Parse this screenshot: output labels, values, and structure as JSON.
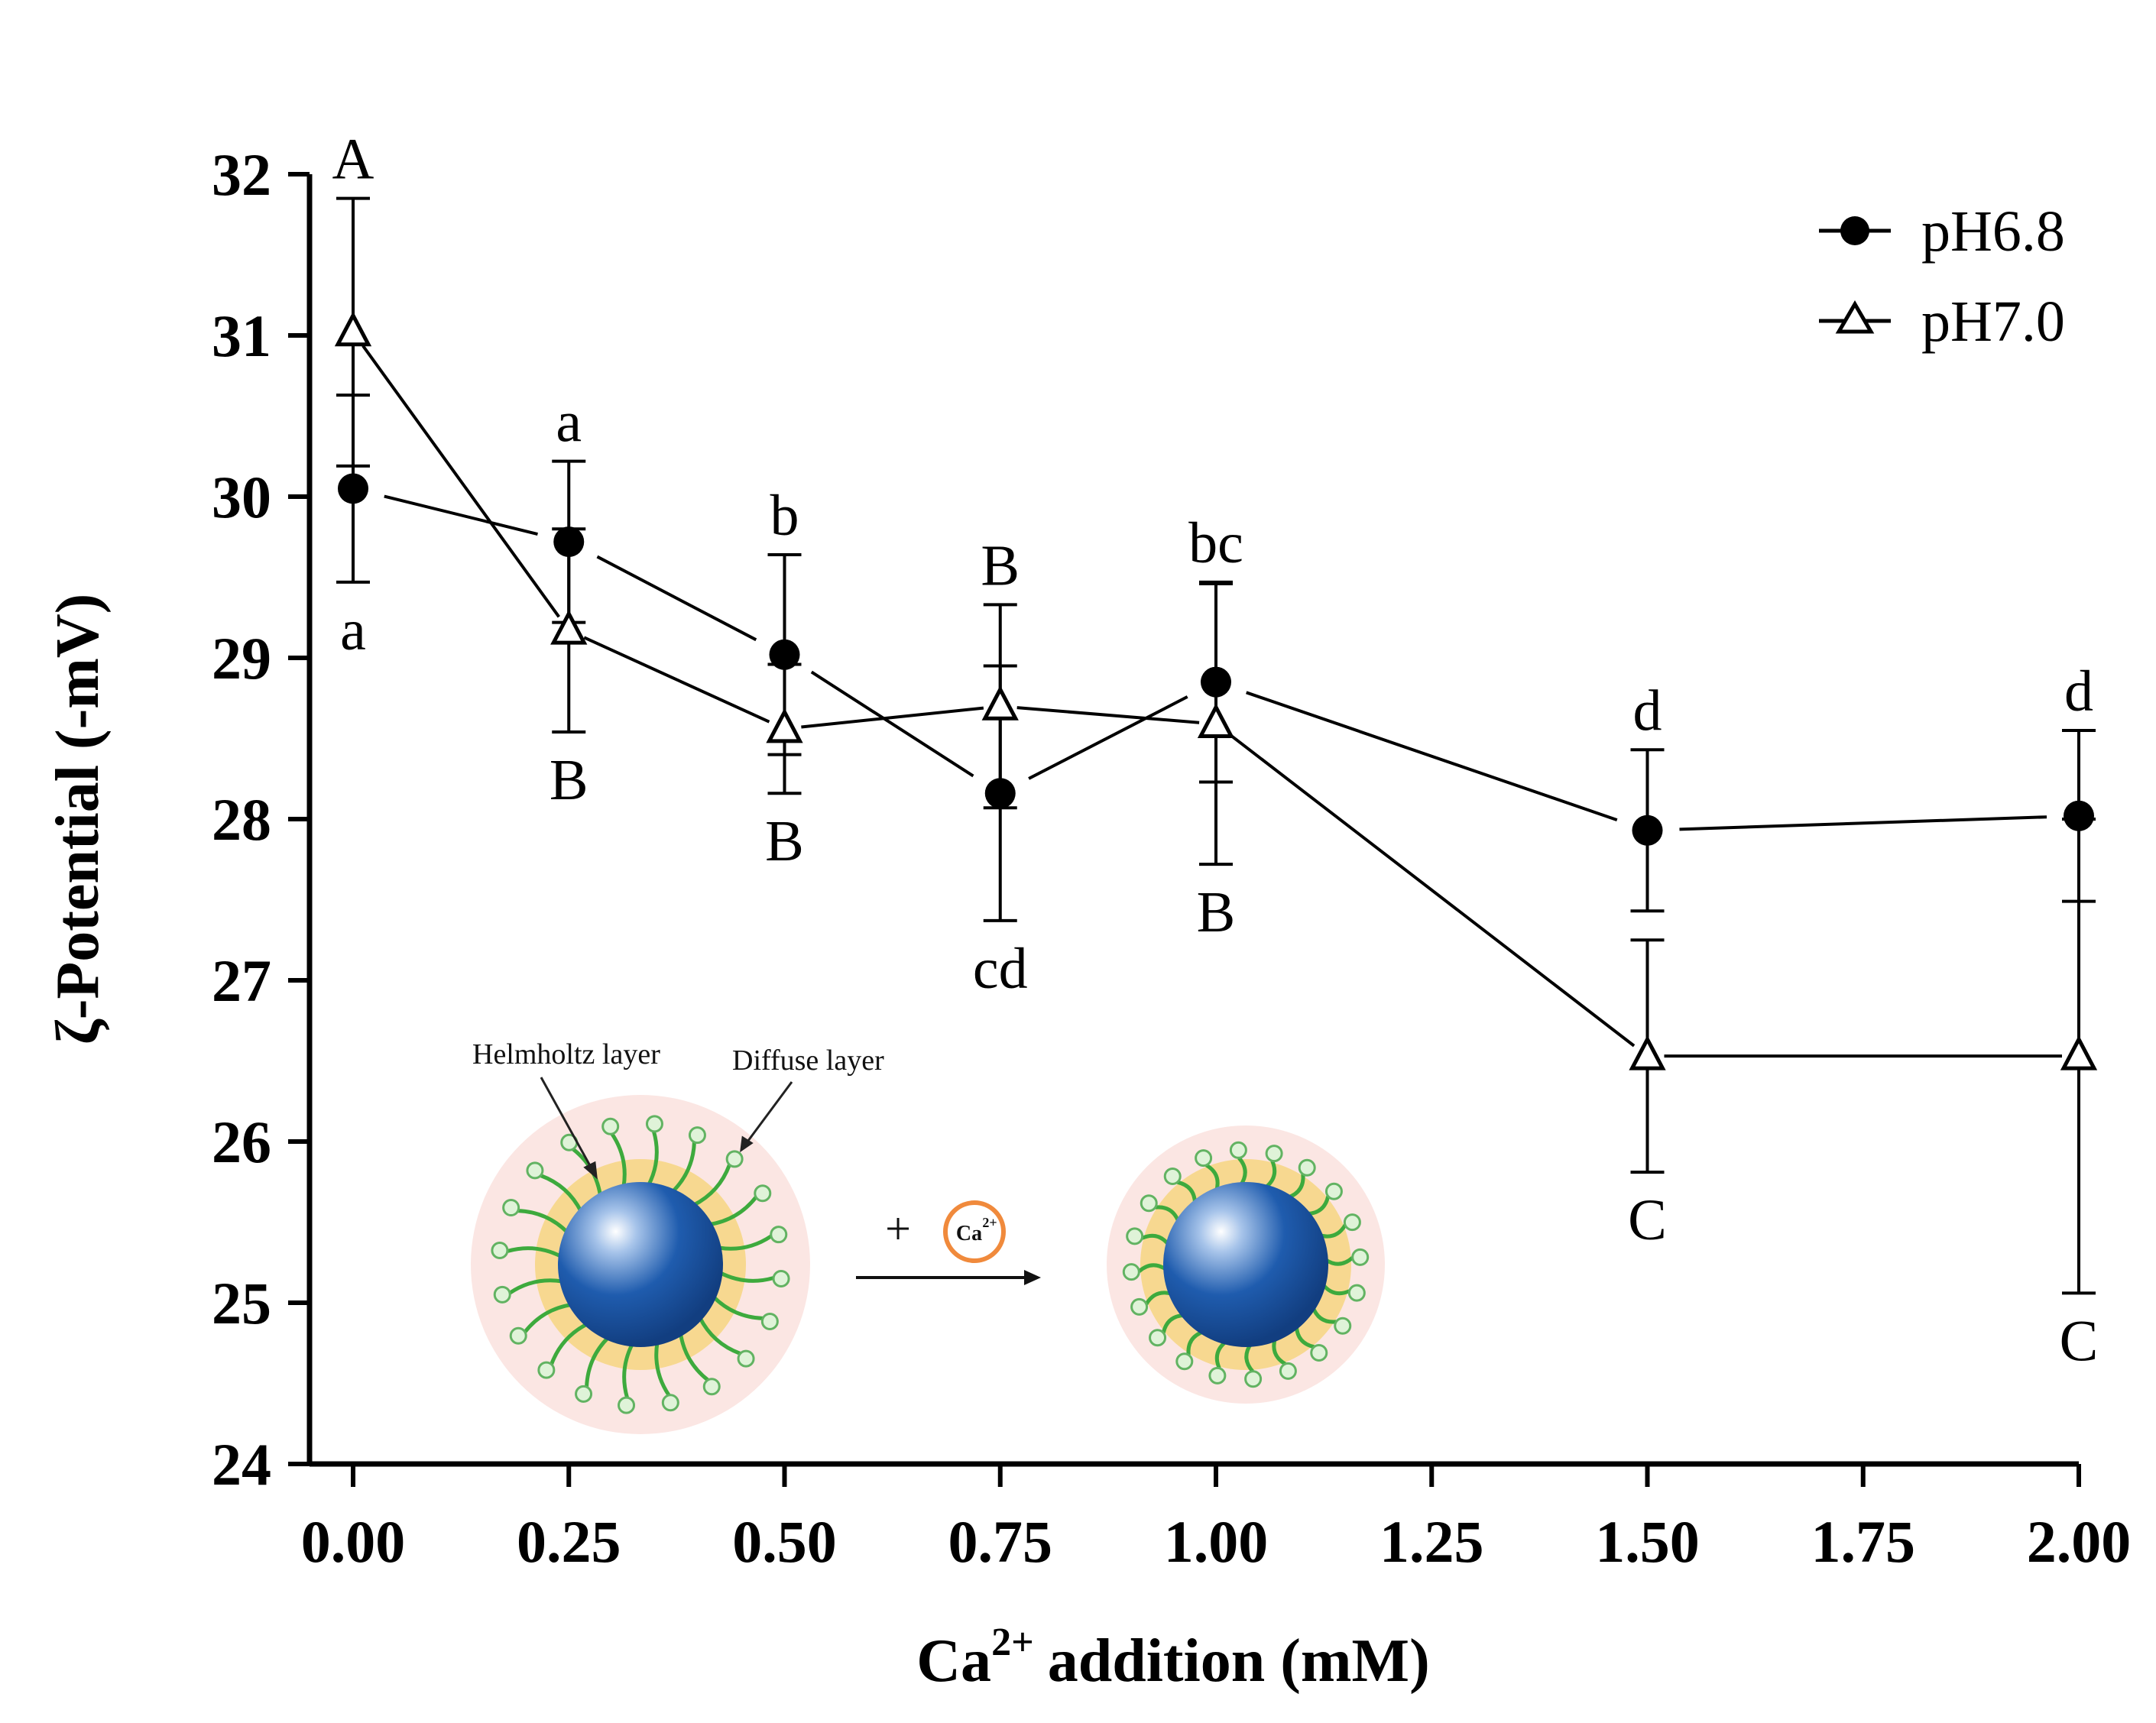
{
  "chart_data": {
    "type": "line",
    "title": "",
    "xlabel": "addition (mM)",
    "xlabel_ion": "Ca",
    "xlabel_ion_charge": "2+",
    "ylabel": "ζ-Potential (-mV)",
    "xlim": [
      0,
      2
    ],
    "ylim": [
      24,
      32
    ],
    "x_ticks": [
      0,
      0.25,
      0.5,
      0.75,
      1.0,
      1.25,
      1.5,
      1.75,
      2.0
    ],
    "x_tick_labels": [
      "0.00",
      "0.25",
      "0.50",
      "0.75",
      "1.00",
      "1.25",
      "1.50",
      "1.75",
      "2.00"
    ],
    "y_ticks": [
      24,
      25,
      26,
      27,
      28,
      29,
      30,
      31,
      32
    ],
    "y_tick_labels": [
      "24",
      "25",
      "26",
      "27",
      "28",
      "29",
      "30",
      "31",
      "32"
    ],
    "legend_position": "top-right",
    "series": [
      {
        "name": "pH6.8",
        "marker": "filled-circle",
        "x": [
          0,
          0.25,
          0.5,
          0.75,
          1.0,
          1.5,
          2.0
        ],
        "values": [
          30.05,
          29.72,
          29.02,
          28.16,
          28.85,
          27.93,
          28.02
        ],
        "error": [
          0.58,
          0.5,
          0.62,
          0.79,
          0.62,
          0.5,
          0.53
        ],
        "significance_labels": [
          "a",
          "a",
          "b",
          "cd",
          "bc",
          "d",
          "d"
        ],
        "label_placement": [
          "below",
          "above",
          "above",
          "below",
          "above",
          "above",
          "above"
        ]
      },
      {
        "name": "pH7.0",
        "marker": "open-triangle",
        "x": [
          0,
          0.25,
          0.5,
          0.75,
          1.0,
          1.5,
          2.0
        ],
        "values": [
          31.02,
          29.17,
          28.56,
          28.7,
          28.59,
          26.53,
          26.53
        ],
        "error": [
          0.83,
          0.63,
          0.4,
          0.63,
          0.87,
          0.72,
          1.47
        ],
        "significance_labels": [
          "A",
          "B",
          "B",
          "B",
          "B",
          "C",
          "C"
        ],
        "label_placement": [
          "above",
          "below",
          "below",
          "above",
          "below",
          "below",
          "below"
        ]
      }
    ],
    "annotations": {
      "inset_helmholtz": "Helmholtz layer",
      "inset_diffuse": "Diffuse layer",
      "inset_plus": "+",
      "inset_ion": "Ca",
      "inset_ion_charge": "2+"
    }
  }
}
